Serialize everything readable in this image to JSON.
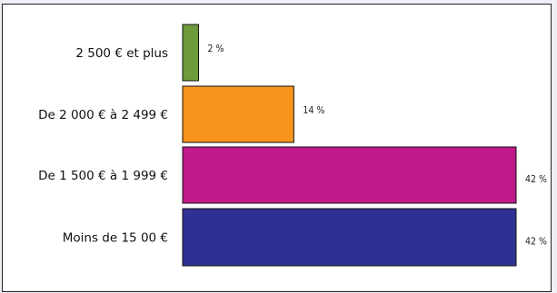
{
  "chart_data": {
    "type": "bar",
    "orientation": "horizontal",
    "title": "",
    "xlabel": "",
    "ylabel": "",
    "categories": [
      "2 500 € et plus",
      "De 2 000 € à 2 499 €",
      "De 1 500 € à 1 999 €",
      "Moins de 15 00 €"
    ],
    "values": [
      2,
      14,
      42,
      42
    ],
    "value_labels": [
      "2 %",
      "14 %",
      "42 %",
      "42 %"
    ],
    "colors": [
      "#6e9a3c",
      "#f7941d",
      "#c0198a",
      "#2e3192"
    ],
    "xlim": [
      0,
      42
    ],
    "grid": false,
    "legend": "none"
  }
}
